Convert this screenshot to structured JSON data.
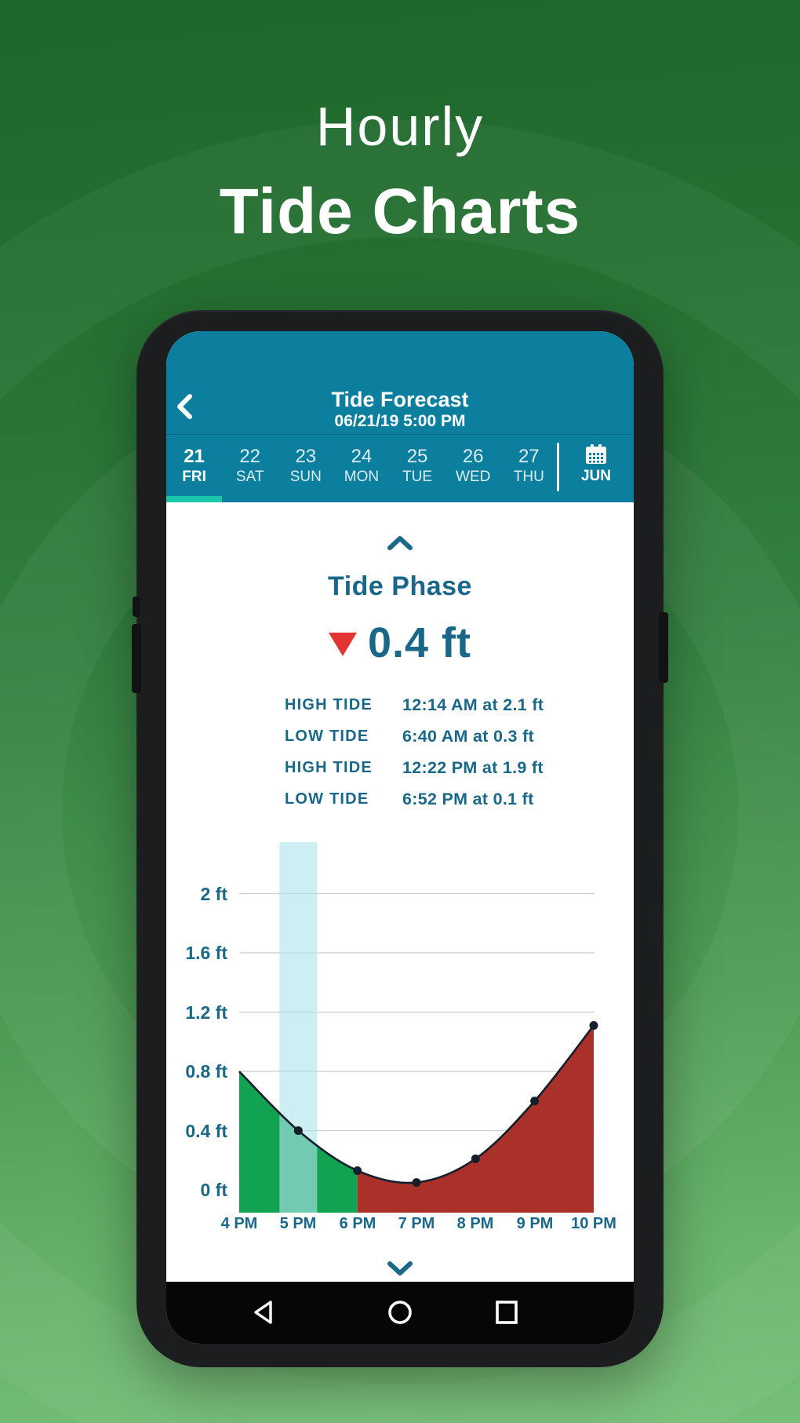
{
  "hero": {
    "title_line1": "Hourly",
    "title_line2": "Tide Charts"
  },
  "phone": {
    "header": {
      "title": "Tide Forecast",
      "subtitle": "06/21/19 5:00 PM"
    },
    "date_tabs": {
      "days": [
        {
          "num": "21",
          "dow": "FRI",
          "active": true
        },
        {
          "num": "22",
          "dow": "SAT"
        },
        {
          "num": "23",
          "dow": "SUN"
        },
        {
          "num": "24",
          "dow": "MON"
        },
        {
          "num": "25",
          "dow": "TUE"
        },
        {
          "num": "26",
          "dow": "WED"
        },
        {
          "num": "27",
          "dow": "THU"
        }
      ],
      "month": {
        "label": "JUN",
        "icon": "calendar-icon"
      }
    },
    "tide_phase": {
      "heading": "Tide Phase",
      "value": "0.4 ft",
      "trend": "falling",
      "trend_icon": "down-triangle-icon"
    },
    "tide_table": [
      {
        "label": "HIGH TIDE",
        "value": "12:14 AM at 2.1 ft"
      },
      {
        "label": "LOW TIDE",
        "value": "6:40 AM at 0.3 ft"
      },
      {
        "label": "HIGH TIDE",
        "value": "12:22 PM at 1.9 ft"
      },
      {
        "label": "LOW TIDE",
        "value": "6:52 PM at 0.1 ft"
      }
    ],
    "nav": {
      "icons": [
        "back-triangle",
        "home-circle",
        "recents-square"
      ]
    }
  },
  "chart_data": {
    "type": "area",
    "title": "",
    "x": [
      "4 PM",
      "5 PM",
      "6 PM",
      "7 PM",
      "8 PM",
      "9 PM",
      "10 PM"
    ],
    "values_ft": [
      0.8,
      0.4,
      0.13,
      0.05,
      0.21,
      0.6,
      1.11
    ],
    "ylabels": [
      "2 ft",
      "1.6 ft",
      "1.2 ft",
      "0.8 ft",
      "0.4 ft",
      "0 ft"
    ],
    "yticks_ft": [
      2,
      1.6,
      1.2,
      0.8,
      0.4,
      0
    ],
    "ylim": [
      0,
      2.4
    ],
    "grid": true,
    "legend": "none",
    "highlight_band_at": "5 PM",
    "segments": [
      {
        "from": "4 PM",
        "to": "6 PM",
        "color_key": "chart_green",
        "meaning": "falling tide"
      },
      {
        "from": "6 PM",
        "to": "10 PM",
        "color_key": "chart_red",
        "meaning": "rising tide"
      }
    ],
    "dots_at": [
      "5 PM",
      "6 PM",
      "7 PM",
      "8 PM",
      "9 PM",
      "10 PM"
    ]
  },
  "colors": {
    "header_teal": "#0c7f9e",
    "accent_turquoise": "#1bc7ab",
    "text_teal": "#19688a",
    "trend_red": "#e23430",
    "chart_green": "#12a352",
    "chart_red": "#a93129",
    "highlight_band": "#aee3ec",
    "curve": "#151f2b",
    "gridline": "#c8cdd2",
    "background_green_top": "#1d672c",
    "background_green_bottom": "#77bf78"
  }
}
